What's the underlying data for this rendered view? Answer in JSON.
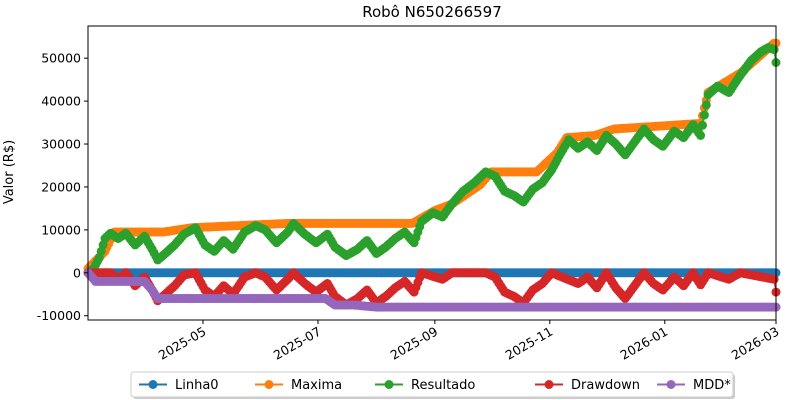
{
  "chart_data": {
    "type": "line",
    "title": "Robô N650266597",
    "xlabel": "",
    "ylabel": "Valor (R$)",
    "x_range": [
      "2025-03-01",
      "2026-03-01"
    ],
    "ylim": [
      -11000,
      57500
    ],
    "x_ticks": [
      "2025-05",
      "2025-07",
      "2025-09",
      "2025-11",
      "2026-01",
      "2026-03"
    ],
    "y_ticks": [
      -10000,
      0,
      10000,
      20000,
      30000,
      40000,
      50000
    ],
    "grid": false,
    "legend_position": "bottom-center",
    "series": [
      {
        "name": "Linha0",
        "color": "#1f77b4",
        "points": [
          [
            "2025-03-01",
            0
          ],
          [
            "2026-03-01",
            0
          ]
        ]
      },
      {
        "name": "Maxima",
        "color": "#ff7f0e",
        "points": [
          [
            "2025-03-01",
            1000
          ],
          [
            "2025-03-10",
            5000
          ],
          [
            "2025-03-15",
            9500
          ],
          [
            "2025-04-10",
            9500
          ],
          [
            "2025-04-25",
            10500
          ],
          [
            "2025-05-20",
            11000
          ],
          [
            "2025-06-15",
            11500
          ],
          [
            "2025-08-20",
            11500
          ],
          [
            "2025-09-01",
            14500
          ],
          [
            "2025-09-10",
            16000
          ],
          [
            "2025-09-25",
            20500
          ],
          [
            "2025-10-01",
            23500
          ],
          [
            "2025-10-25",
            23500
          ],
          [
            "2025-11-05",
            28000
          ],
          [
            "2025-11-10",
            31500
          ],
          [
            "2025-11-25",
            32000
          ],
          [
            "2025-12-05",
            33500
          ],
          [
            "2026-01-20",
            34800
          ],
          [
            "2026-01-24",
            42000
          ],
          [
            "2026-02-10",
            46500
          ],
          [
            "2026-02-28",
            53500
          ],
          [
            "2026-03-01",
            53500
          ]
        ]
      },
      {
        "name": "Resultado",
        "color": "#2ca02c",
        "points": [
          [
            "2025-03-01",
            0
          ],
          [
            "2025-03-04",
            1000
          ],
          [
            "2025-03-07",
            3500
          ],
          [
            "2025-03-10",
            8000
          ],
          [
            "2025-03-13",
            9200
          ],
          [
            "2025-03-17",
            8000
          ],
          [
            "2025-03-21",
            9200
          ],
          [
            "2025-03-26",
            6500
          ],
          [
            "2025-03-31",
            8500
          ],
          [
            "2025-04-04",
            5500
          ],
          [
            "2025-04-07",
            3000
          ],
          [
            "2025-04-11",
            4500
          ],
          [
            "2025-04-16",
            6500
          ],
          [
            "2025-04-21",
            9000
          ],
          [
            "2025-04-27",
            10500
          ],
          [
            "2025-05-02",
            6500
          ],
          [
            "2025-05-07",
            5000
          ],
          [
            "2025-05-12",
            7500
          ],
          [
            "2025-05-17",
            5500
          ],
          [
            "2025-05-23",
            9500
          ],
          [
            "2025-05-29",
            11000
          ],
          [
            "2025-06-03",
            10000
          ],
          [
            "2025-06-09",
            7000
          ],
          [
            "2025-06-15",
            9500
          ],
          [
            "2025-06-18",
            11500
          ],
          [
            "2025-06-24",
            9000
          ],
          [
            "2025-06-30",
            7000
          ],
          [
            "2025-07-06",
            9000
          ],
          [
            "2025-07-10",
            6000
          ],
          [
            "2025-07-16",
            4000
          ],
          [
            "2025-07-22",
            5500
          ],
          [
            "2025-07-27",
            7500
          ],
          [
            "2025-08-01",
            4500
          ],
          [
            "2025-08-06",
            6000
          ],
          [
            "2025-08-11",
            8000
          ],
          [
            "2025-08-16",
            9500
          ],
          [
            "2025-08-21",
            7000
          ],
          [
            "2025-08-25",
            12000
          ],
          [
            "2025-08-31",
            14000
          ],
          [
            "2025-09-05",
            13000
          ],
          [
            "2025-09-10",
            16000
          ],
          [
            "2025-09-16",
            19000
          ],
          [
            "2025-09-22",
            21000
          ],
          [
            "2025-09-28",
            23500
          ],
          [
            "2025-10-03",
            22500
          ],
          [
            "2025-10-08",
            19000
          ],
          [
            "2025-10-13",
            18000
          ],
          [
            "2025-10-18",
            16500
          ],
          [
            "2025-10-23",
            19500
          ],
          [
            "2025-10-28",
            21000
          ],
          [
            "2025-11-02",
            24000
          ],
          [
            "2025-11-07",
            28000
          ],
          [
            "2025-11-11",
            31000
          ],
          [
            "2025-11-16",
            29000
          ],
          [
            "2025-11-21",
            30500
          ],
          [
            "2025-11-26",
            28500
          ],
          [
            "2025-12-01",
            32000
          ],
          [
            "2025-12-06",
            30000
          ],
          [
            "2025-12-11",
            27500
          ],
          [
            "2025-12-16",
            30500
          ],
          [
            "2025-12-21",
            33500
          ],
          [
            "2025-12-26",
            31000
          ],
          [
            "2025-12-31",
            29500
          ],
          [
            "2026-01-06",
            33000
          ],
          [
            "2026-01-11",
            31500
          ],
          [
            "2026-01-16",
            34500
          ],
          [
            "2026-01-20",
            32000
          ],
          [
            "2026-01-24",
            41500
          ],
          [
            "2026-01-29",
            43500
          ],
          [
            "2026-02-04",
            42000
          ],
          [
            "2026-02-10",
            46000
          ],
          [
            "2026-02-16",
            49500
          ],
          [
            "2026-02-21",
            51500
          ],
          [
            "2026-02-25",
            52500
          ],
          [
            "2026-02-28",
            52000
          ],
          [
            "2026-03-01",
            49000
          ]
        ]
      },
      {
        "name": "Drawdown",
        "color": "#d62728",
        "points": [
          [
            "2025-03-01",
            0
          ],
          [
            "2025-03-13",
            0
          ],
          [
            "2025-03-17",
            -1500
          ],
          [
            "2025-03-21",
            0
          ],
          [
            "2025-03-26",
            -3000
          ],
          [
            "2025-03-31",
            -1000
          ],
          [
            "2025-04-04",
            -4000
          ],
          [
            "2025-04-07",
            -6500
          ],
          [
            "2025-04-11",
            -5000
          ],
          [
            "2025-04-16",
            -3000
          ],
          [
            "2025-04-21",
            -500
          ],
          [
            "2025-04-27",
            0
          ],
          [
            "2025-05-02",
            -4000
          ],
          [
            "2025-05-07",
            -5500
          ],
          [
            "2025-05-12",
            -3000
          ],
          [
            "2025-05-17",
            -5000
          ],
          [
            "2025-05-23",
            -1000
          ],
          [
            "2025-05-29",
            0
          ],
          [
            "2025-06-03",
            -1000
          ],
          [
            "2025-06-09",
            -4000
          ],
          [
            "2025-06-15",
            -1500
          ],
          [
            "2025-06-18",
            0
          ],
          [
            "2025-06-24",
            -2500
          ],
          [
            "2025-06-30",
            -4500
          ],
          [
            "2025-07-06",
            -2500
          ],
          [
            "2025-07-10",
            -5500
          ],
          [
            "2025-07-16",
            -7500
          ],
          [
            "2025-07-22",
            -6000
          ],
          [
            "2025-07-27",
            -4000
          ],
          [
            "2025-08-01",
            -7000
          ],
          [
            "2025-08-06",
            -5500
          ],
          [
            "2025-08-11",
            -3500
          ],
          [
            "2025-08-16",
            -2000
          ],
          [
            "2025-08-21",
            -4500
          ],
          [
            "2025-08-25",
            0
          ],
          [
            "2025-09-05",
            -1500
          ],
          [
            "2025-09-10",
            0
          ],
          [
            "2025-09-28",
            0
          ],
          [
            "2025-10-03",
            -1000
          ],
          [
            "2025-10-08",
            -4500
          ],
          [
            "2025-10-13",
            -5500
          ],
          [
            "2025-10-18",
            -7000
          ],
          [
            "2025-10-23",
            -4000
          ],
          [
            "2025-10-28",
            -2500
          ],
          [
            "2025-11-02",
            0
          ],
          [
            "2025-11-16",
            -2500
          ],
          [
            "2025-11-21",
            -1000
          ],
          [
            "2025-11-26",
            -3500
          ],
          [
            "2025-12-01",
            0
          ],
          [
            "2025-12-06",
            -3500
          ],
          [
            "2025-12-11",
            -6000
          ],
          [
            "2025-12-16",
            -3000
          ],
          [
            "2025-12-21",
            0
          ],
          [
            "2025-12-26",
            -2500
          ],
          [
            "2025-12-31",
            -4000
          ],
          [
            "2026-01-06",
            -1000
          ],
          [
            "2026-01-11",
            -3000
          ],
          [
            "2026-01-16",
            0
          ],
          [
            "2026-01-20",
            -2800
          ],
          [
            "2026-01-24",
            0
          ],
          [
            "2026-02-04",
            -1500
          ],
          [
            "2026-02-10",
            0
          ],
          [
            "2026-02-28",
            -1500
          ],
          [
            "2026-03-01",
            -4500
          ]
        ]
      },
      {
        "name": "MDD*",
        "color": "#9467bd",
        "points": [
          [
            "2025-03-01",
            0
          ],
          [
            "2025-03-05",
            -2000
          ],
          [
            "2025-03-31",
            -2000
          ],
          [
            "2025-04-04",
            -4000
          ],
          [
            "2025-04-07",
            -6000
          ],
          [
            "2025-07-05",
            -6000
          ],
          [
            "2025-07-10",
            -7500
          ],
          [
            "2025-07-20",
            -7500
          ],
          [
            "2025-08-01",
            -8000
          ],
          [
            "2026-03-01",
            -8000
          ]
        ]
      }
    ]
  }
}
